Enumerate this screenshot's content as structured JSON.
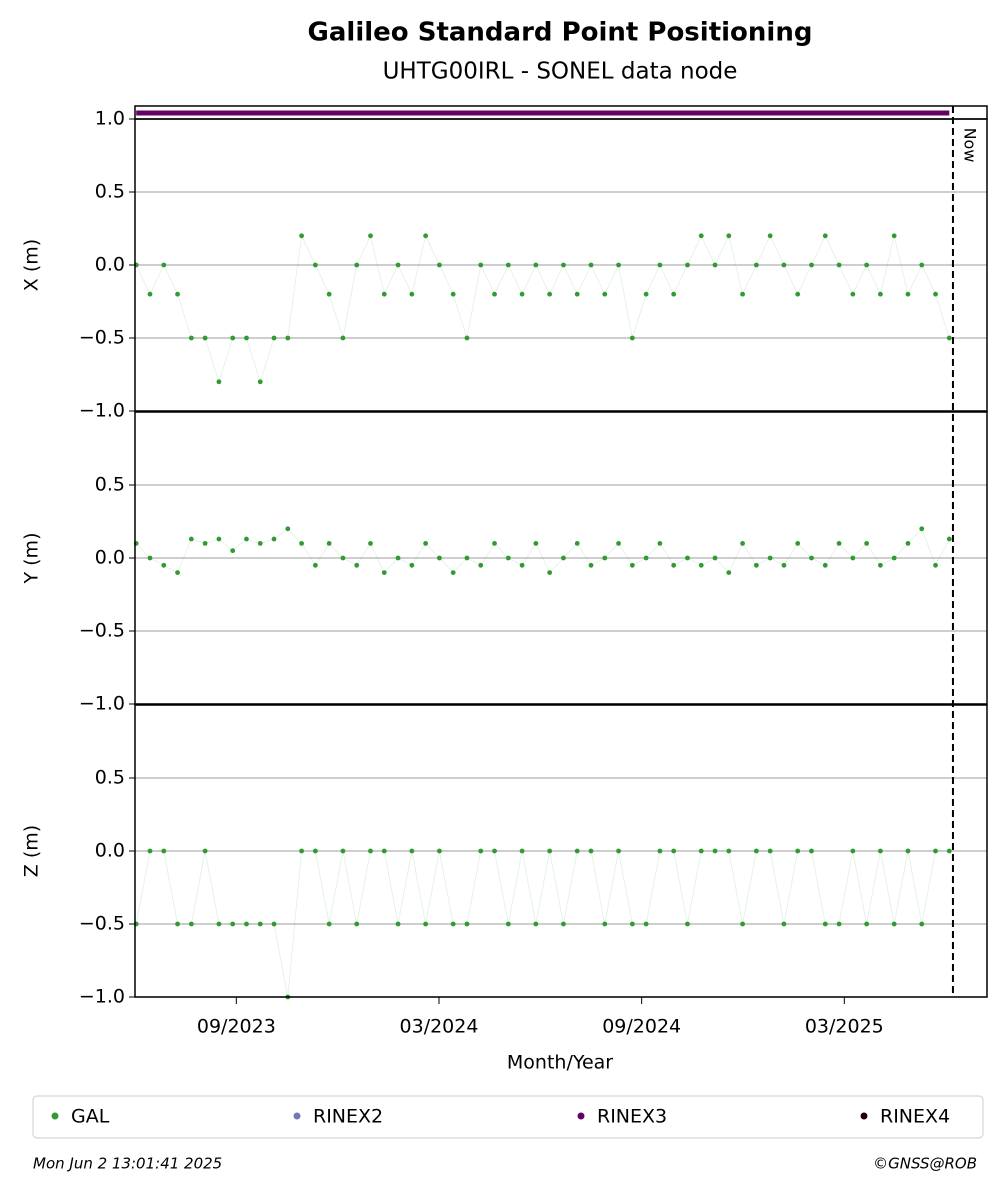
{
  "chart_data": {
    "type": "scatter",
    "title": "Galileo Standard Point Positioning",
    "subtitle": "UHTG00IRL - SONEL data node",
    "xlabel": "Month/Year",
    "xlim": [
      2023.417,
      2025.519
    ],
    "xticks": [
      {
        "value": 2023.667,
        "label": "09/2023"
      },
      {
        "value": 2024.167,
        "label": "03/2024"
      },
      {
        "value": 2024.667,
        "label": "09/2024"
      },
      {
        "value": 2025.167,
        "label": "03/2025"
      }
    ],
    "now": {
      "value": 2025.435,
      "label": "Now"
    },
    "availability": {
      "name": "RINEX3",
      "color": "#660066",
      "xrange": [
        2023.42,
        2025.426
      ]
    },
    "x": [
      2023.42,
      2023.454,
      2023.488,
      2023.522,
      2023.556,
      2023.59,
      2023.624,
      2023.658,
      2023.692,
      2023.726,
      2023.76,
      2023.794,
      2023.828,
      2023.862,
      2023.896,
      2023.93,
      2023.964,
      2023.998,
      2024.032,
      2024.066,
      2024.1,
      2024.134,
      2024.168,
      2024.202,
      2024.236,
      2024.27,
      2024.304,
      2024.338,
      2024.372,
      2024.406,
      2024.44,
      2024.474,
      2024.508,
      2024.542,
      2024.576,
      2024.61,
      2024.644,
      2024.678,
      2024.712,
      2024.746,
      2024.78,
      2024.814,
      2024.848,
      2024.882,
      2024.916,
      2024.95,
      2024.984,
      2025.018,
      2025.052,
      2025.086,
      2025.12,
      2025.154,
      2025.188,
      2025.222,
      2025.256,
      2025.29,
      2025.324,
      2025.358,
      2025.392,
      2025.426
    ],
    "panels": [
      {
        "ylabel": "X (m)",
        "ylim": [
          -1,
          1
        ],
        "yticks": [
          {
            "value": -1,
            "label": "−1.0"
          },
          {
            "value": -0.5,
            "label": "−0.5"
          },
          {
            "value": 0,
            "label": "0.0"
          },
          {
            "value": 0.5,
            "label": "0.5"
          },
          {
            "value": 1,
            "label": "1.0"
          }
        ],
        "series": [
          {
            "color": "#339933",
            "values": [
              0,
              -0.2,
              0,
              -0.2,
              -0.5,
              -0.5,
              -0.8,
              -0.5,
              -0.5,
              -0.8,
              -0.5,
              -0.5,
              0.2,
              0,
              -0.2,
              -0.5,
              0,
              0.2,
              -0.2,
              0,
              -0.2,
              0.2,
              0,
              -0.2,
              -0.5,
              0,
              -0.2,
              0,
              -0.2,
              0,
              -0.2,
              0,
              -0.2,
              0,
              -0.2,
              0,
              -0.5,
              -0.2,
              0,
              -0.2,
              0,
              0.2,
              0,
              0.2,
              -0.2,
              0,
              0.2,
              0,
              -0.2,
              0,
              0.2,
              0,
              -0.2,
              0,
              -0.2,
              0.2,
              -0.2,
              0,
              -0.2,
              -0.5
            ]
          }
        ]
      },
      {
        "ylabel": "Y (m)",
        "ylim": [
          -1,
          1
        ],
        "yticks": [
          {
            "value": -1,
            "label": "−1.0"
          },
          {
            "value": -0.5,
            "label": "−0.5"
          },
          {
            "value": 0,
            "label": "0.0"
          },
          {
            "value": 0.5,
            "label": "0.5"
          }
        ],
        "series": [
          {
            "color": "#339933",
            "values": [
              0.1,
              0,
              -0.05,
              -0.1,
              0.13,
              0.1,
              0.13,
              0.05,
              0.13,
              0.1,
              0.13,
              0.2,
              0.1,
              -0.05,
              0.1,
              0,
              -0.05,
              0.1,
              -0.1,
              0,
              -0.05,
              0.1,
              0,
              -0.1,
              0,
              -0.05,
              0.1,
              0,
              -0.05,
              0.1,
              -0.1,
              0,
              0.1,
              -0.05,
              0,
              0.1,
              -0.05,
              0,
              0.1,
              -0.05,
              0,
              -0.05,
              0,
              -0.1,
              0.1,
              -0.05,
              0,
              -0.05,
              0.1,
              0,
              -0.05,
              0.1,
              0,
              0.1,
              -0.05,
              0,
              0.1,
              0.2,
              -0.05,
              0.13
            ]
          }
        ]
      },
      {
        "ylabel": "Z (m)",
        "ylim": [
          -1,
          1
        ],
        "yticks": [
          {
            "value": -1,
            "label": "−1.0"
          },
          {
            "value": -0.5,
            "label": "−0.5"
          },
          {
            "value": 0,
            "label": "0.0"
          },
          {
            "value": 0.5,
            "label": "0.5"
          }
        ],
        "series": [
          {
            "color": "#339933",
            "values": [
              -0.5,
              0,
              0,
              -0.5,
              -0.5,
              0,
              -0.5,
              -0.5,
              -0.5,
              -0.5,
              -0.5,
              -1,
              0,
              0,
              -0.5,
              0,
              -0.5,
              0,
              0,
              -0.5,
              0,
              -0.5,
              0,
              -0.5,
              -0.5,
              0,
              0,
              -0.5,
              0,
              -0.5,
              0,
              -0.5,
              0,
              0,
              -0.5,
              0,
              -0.5,
              -0.5,
              0,
              0,
              -0.5,
              0,
              0,
              0,
              -0.5,
              0,
              0,
              -0.5,
              0,
              0,
              -0.5,
              -0.5,
              0,
              -0.5,
              0,
              -0.5,
              0,
              -0.5,
              0,
              0
            ]
          }
        ]
      }
    ],
    "legend": [
      {
        "name": "GAL",
        "color": "#339933"
      },
      {
        "name": "RINEX2",
        "color": "#7777bb"
      },
      {
        "name": "RINEX3",
        "color": "#660066"
      },
      {
        "name": "RINEX4",
        "color": "#220011"
      }
    ],
    "footer_left": "Mon Jun  2 13:01:41 2025",
    "footer_right": "©GNSS@ROB"
  }
}
